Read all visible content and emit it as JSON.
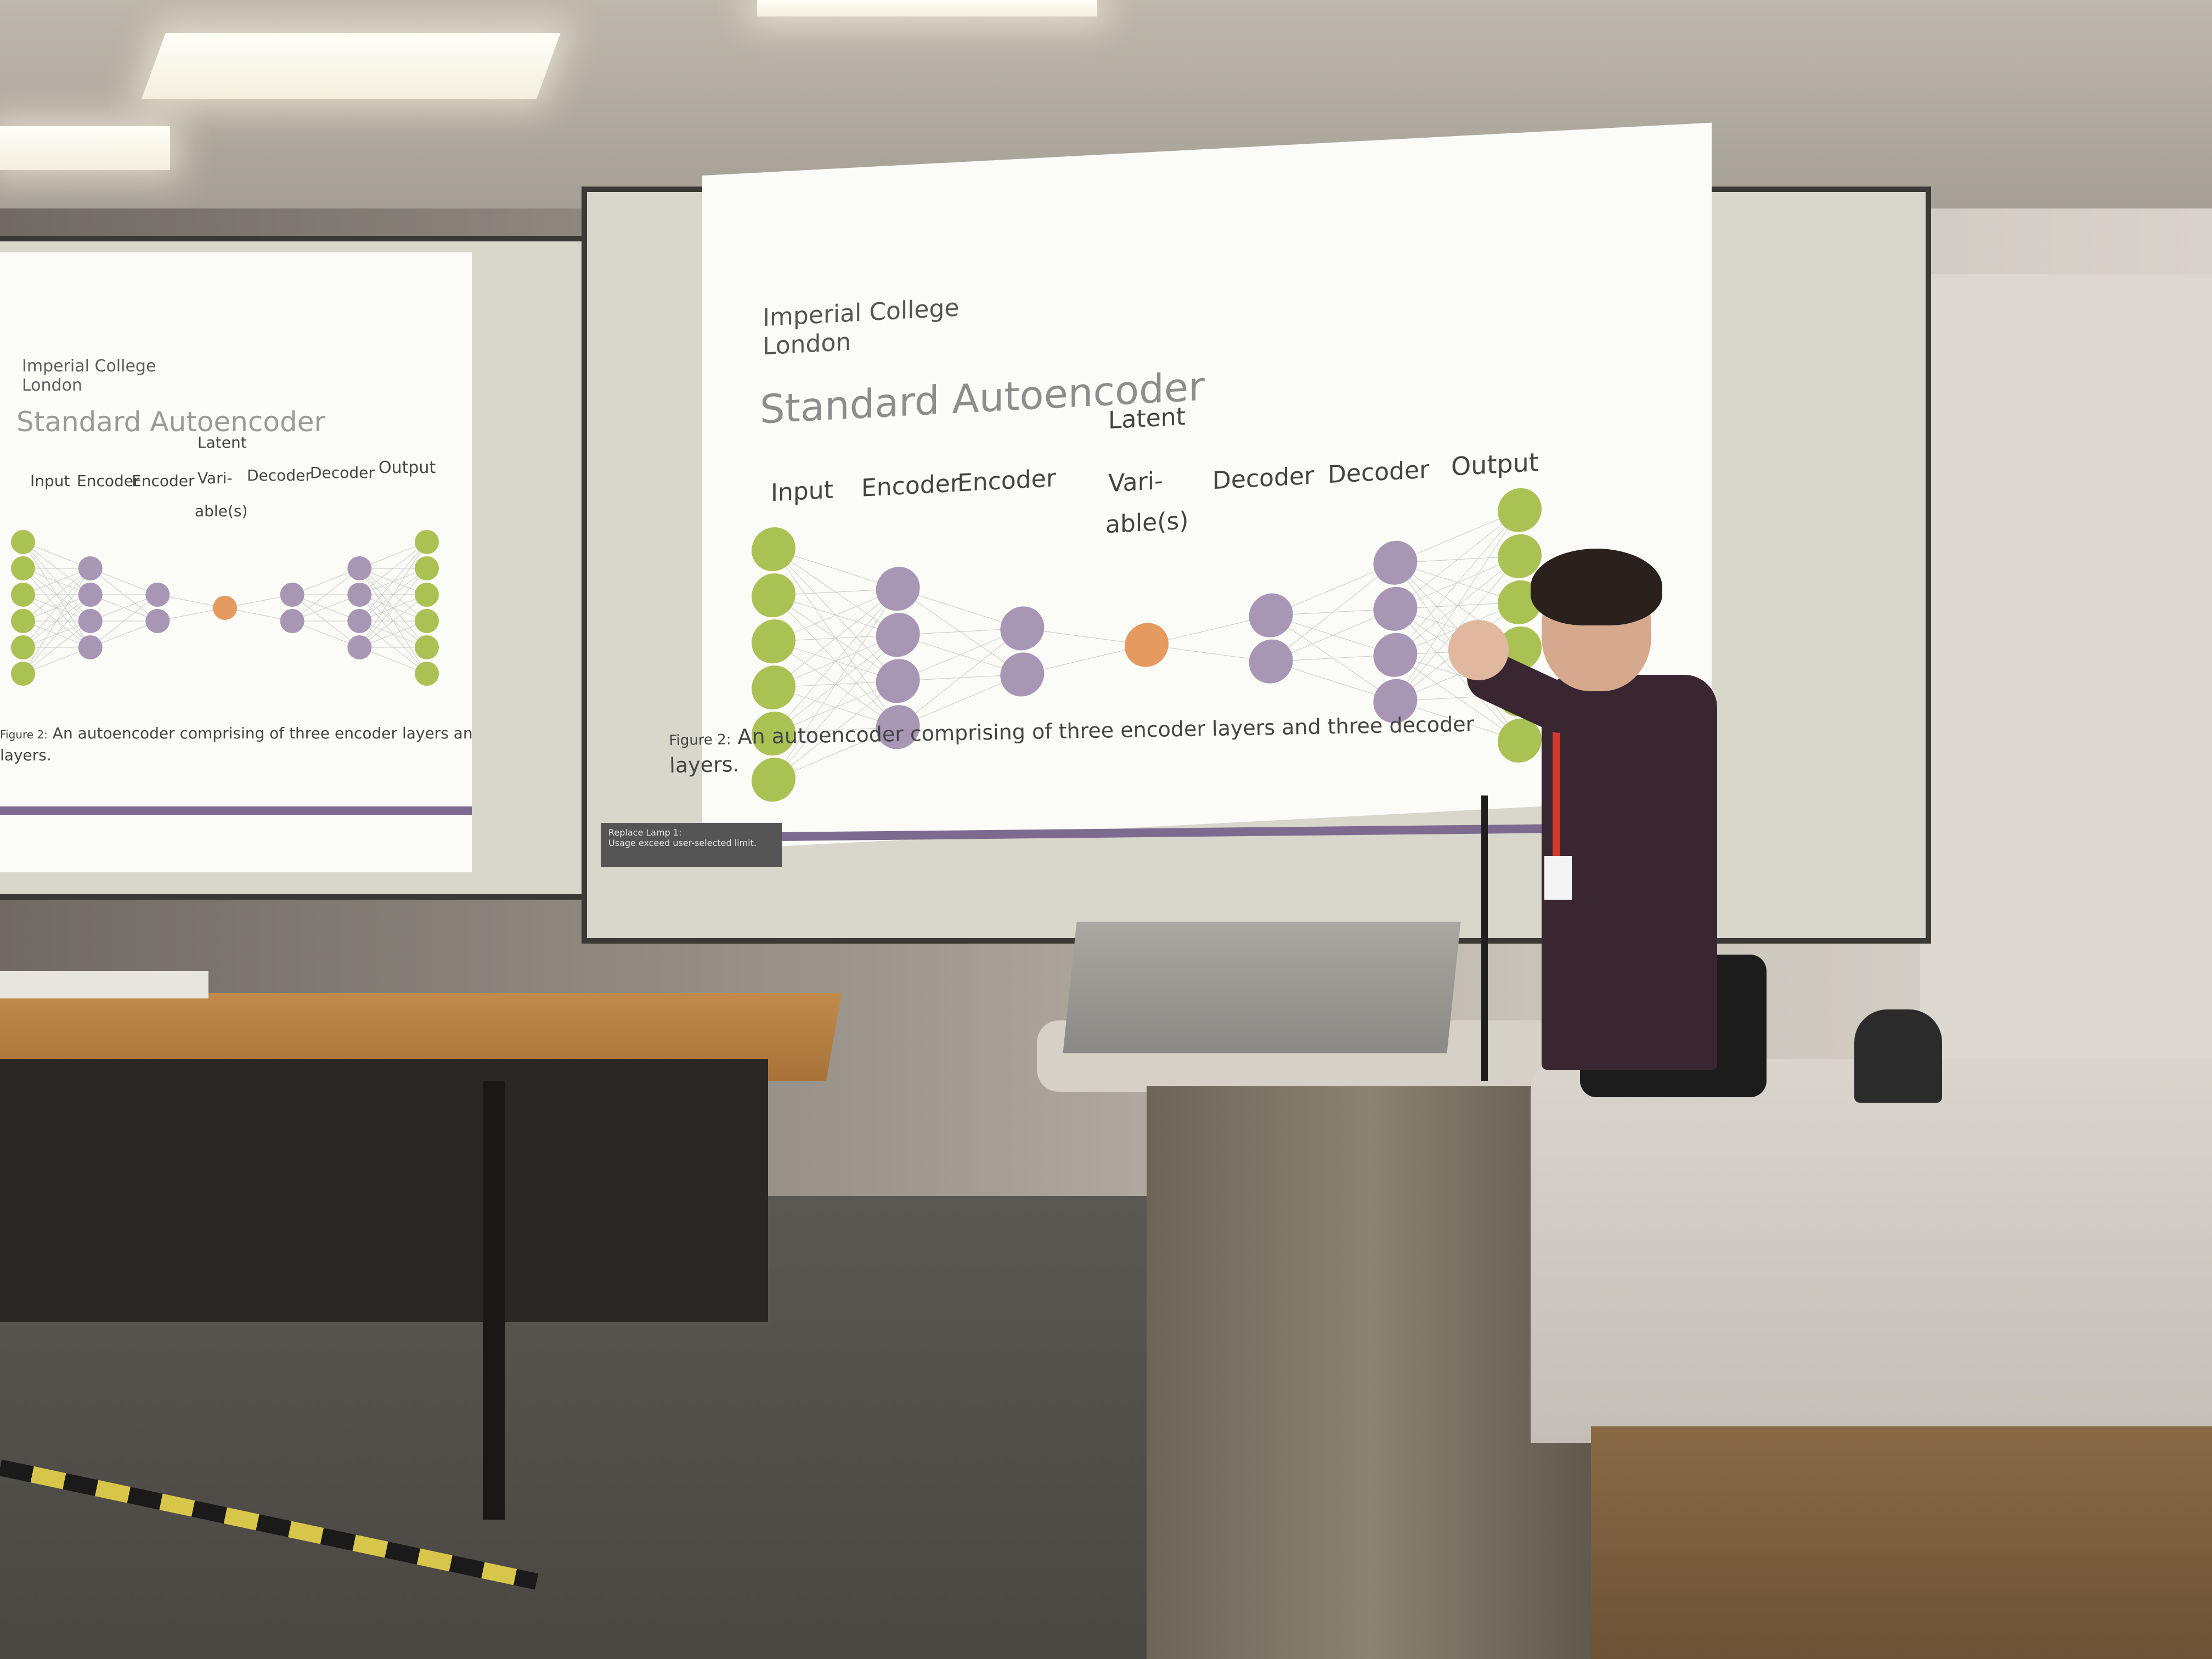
{
  "slide": {
    "logo_line1": "Imperial College",
    "logo_line2": "London",
    "title": "Standard Autoencoder",
    "layers": {
      "input": "Input",
      "encoder1": "Encoder",
      "encoder2": "Encoder",
      "latent_top": "Latent",
      "latent_mid": "Vari-",
      "latent_bot": "able(s)",
      "decoder1": "Decoder",
      "decoder2": "Decoder",
      "output": "Output"
    },
    "caption_label": "Figure 2:",
    "caption_text": "An autoencoder comprising of three encoder layers and three decoder",
    "caption_cont": "layers."
  },
  "projector_notice": {
    "line1": "Replace Lamp 1:",
    "line2": "Usage exceed user-selected limit."
  },
  "colors": {
    "input_output": "#aac254",
    "encoder_decoder": "#a896b5",
    "latent": "#e59a5f",
    "purple_rule": "#7d6b8f"
  },
  "network": {
    "layer_sizes": [
      6,
      4,
      2,
      1,
      2,
      4,
      6
    ]
  }
}
